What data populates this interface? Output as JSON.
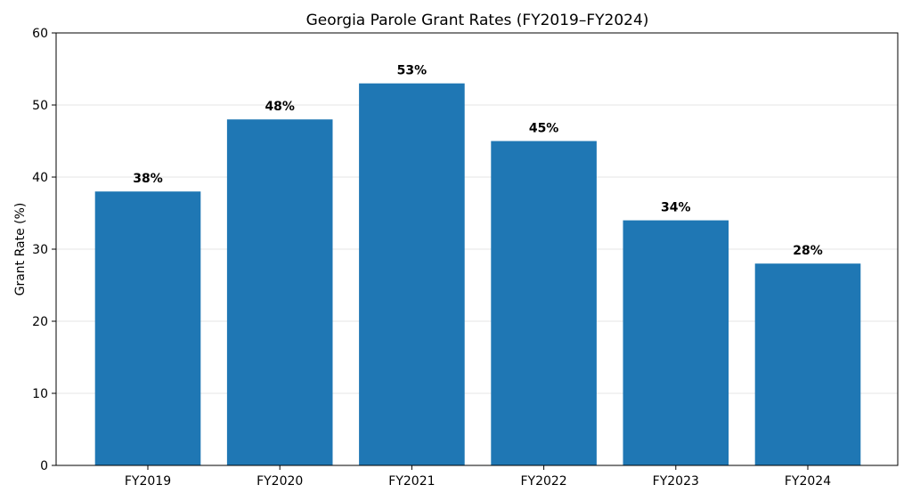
{
  "chart_data": {
    "type": "bar",
    "title": "Georgia Parole Grant Rates (FY2019–FY2024)",
    "xlabel": "",
    "ylabel": "Grant Rate (%)",
    "categories": [
      "FY2019",
      "FY2020",
      "FY2021",
      "FY2022",
      "FY2023",
      "FY2024"
    ],
    "values": [
      38,
      48,
      53,
      45,
      34,
      28
    ],
    "data_labels": [
      "38%",
      "48%",
      "53%",
      "45%",
      "34%",
      "28%"
    ],
    "ylim": [
      0,
      60
    ],
    "yticks": [
      0,
      10,
      20,
      30,
      40,
      50,
      60
    ],
    "ytick_labels": [
      "0",
      "10",
      "20",
      "30",
      "40",
      "50",
      "60"
    ],
    "grid": "y",
    "bar_color": "#1f77b4"
  }
}
